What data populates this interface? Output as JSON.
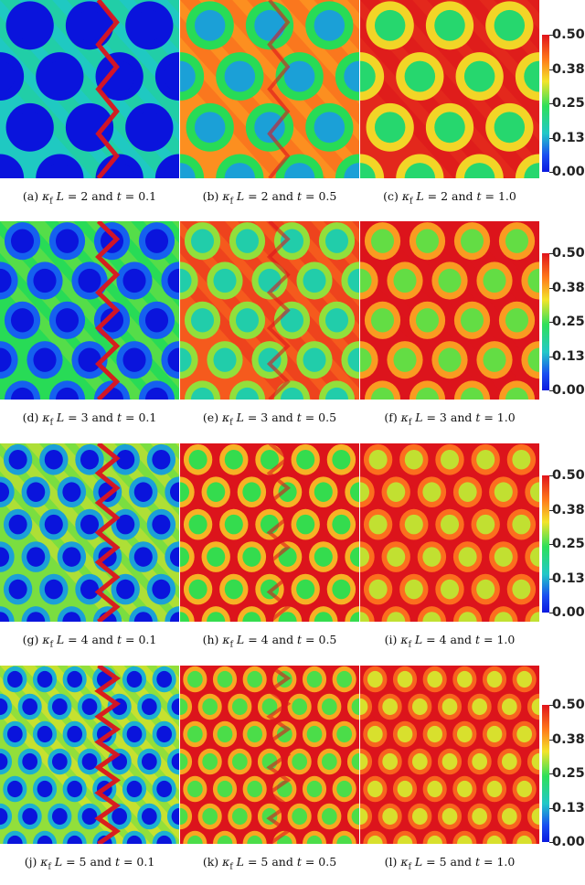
{
  "colors": {
    "deep_blue": "#0b1ae0",
    "blue": "#1a4df0",
    "cyan": "#22c8c8",
    "green": "#2ee05a",
    "yellow": "#f3e42a",
    "orange": "#ff7a1a",
    "red": "#e0141c"
  },
  "colorbar": {
    "ticks": [
      "0.50",
      "0.38",
      "0.25",
      "0.13",
      "0.00"
    ],
    "range": [
      0.0,
      0.5
    ]
  },
  "rows": [
    {
      "kappa": 2,
      "levels": [
        0.05,
        0.3,
        0.4
      ],
      "captions": [
        "(a) κ_f L = 2 and t = 0.1",
        "(b) κ_f L = 2 and t = 0.5",
        "(c) κ_f L = 2 and t = 1.0"
      ]
    },
    {
      "kappa": 3,
      "levels": [
        0.14,
        0.35,
        0.45
      ],
      "captions": [
        "(d) κ_f L = 3 and t = 0.1",
        "(e) κ_f L = 3 and t = 0.5",
        "(f) κ_f L = 3 and t = 1.0"
      ]
    },
    {
      "kappa": 4,
      "levels": [
        0.18,
        0.43,
        0.49
      ],
      "captions": [
        "(g) κ_f L = 4 and t = 0.1",
        "(h) κ_f L = 4 and t = 0.5",
        "(i) κ_f L = 4 and t = 1.0"
      ]
    },
    {
      "kappa": 5,
      "levels": [
        0.19,
        0.44,
        0.5
      ],
      "captions": [
        "(j) κ_f L = 5 and t = 0.1",
        "(k) κ_f L = 5 and t = 0.5",
        "(l) κ_f L = 5 and t = 1.0"
      ]
    }
  ]
}
